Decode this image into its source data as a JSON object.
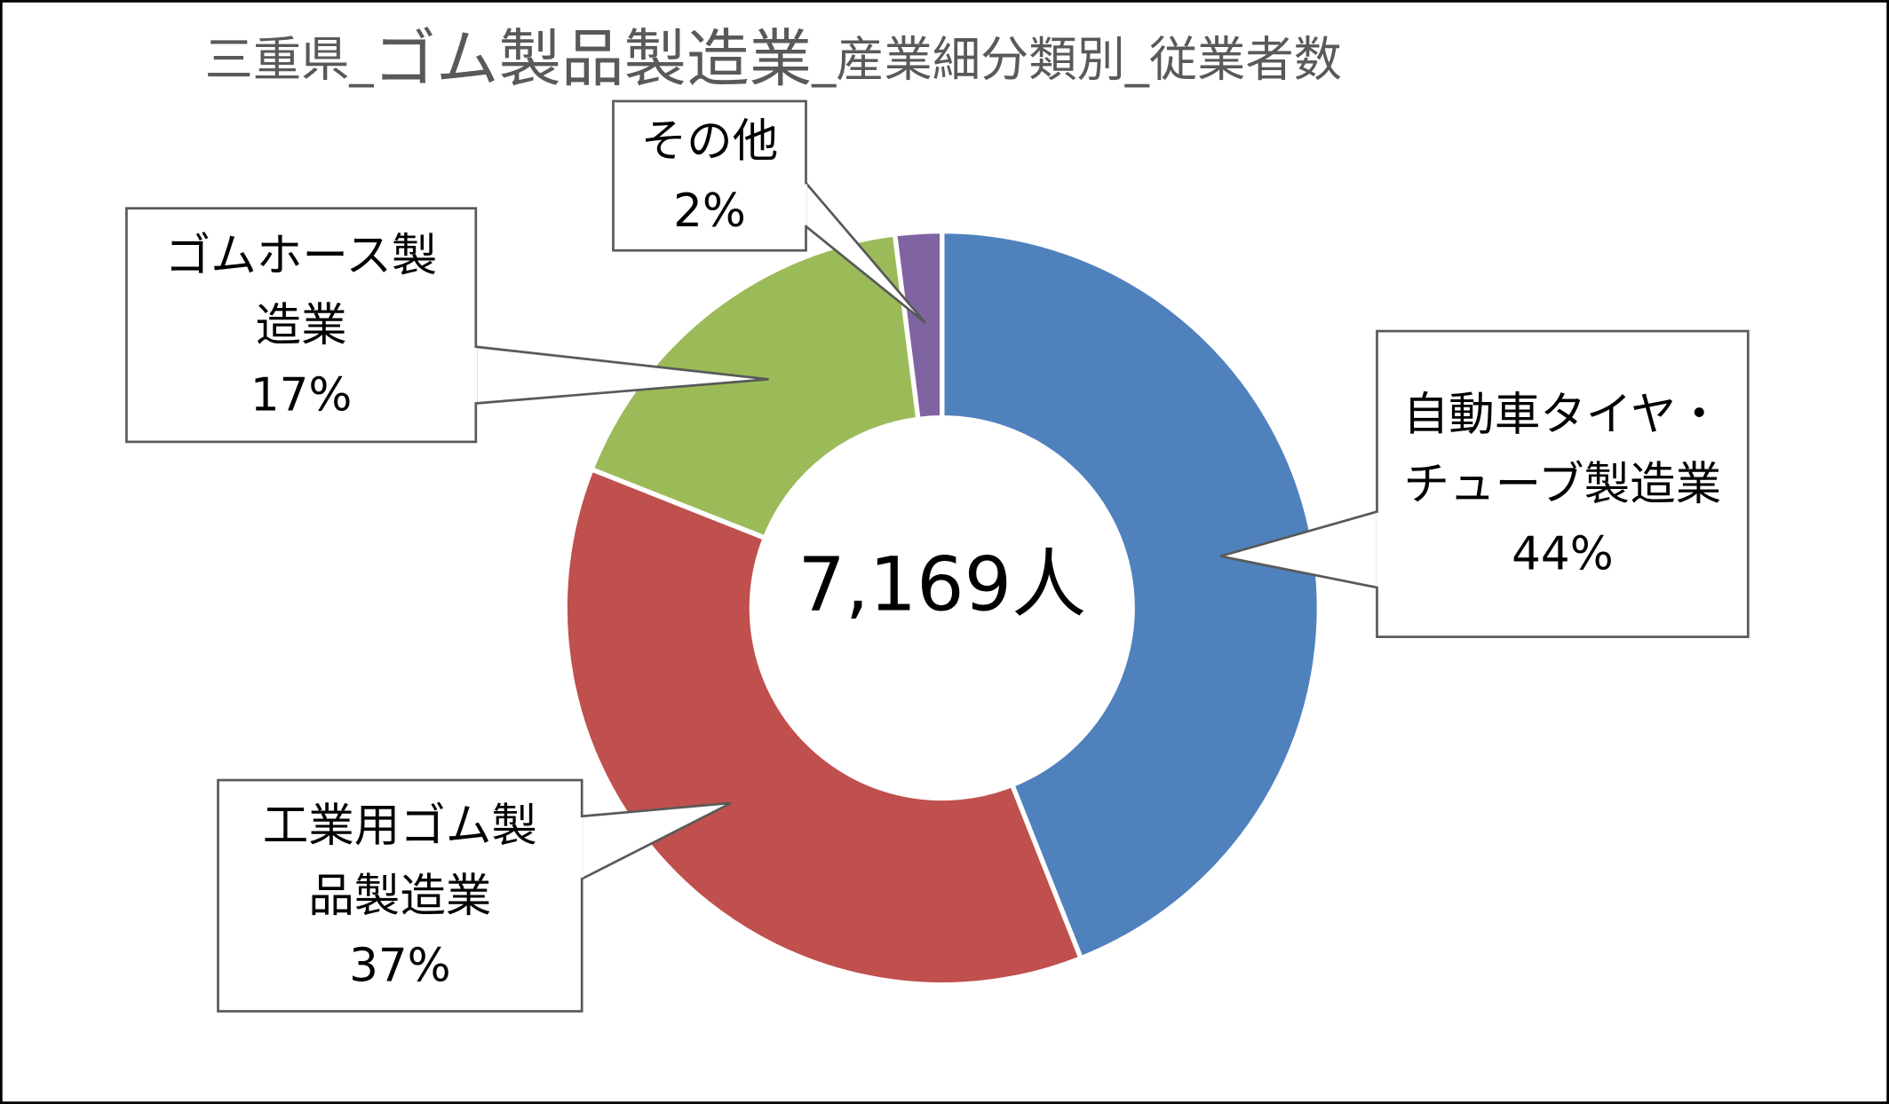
{
  "chart_data": {
    "type": "donut",
    "title": [
      "三重県_",
      "ゴム製品製造業",
      "_産業細分類別_従業者数"
    ],
    "center_label": "7,169人",
    "categories": [
      "自動車タイヤ・チューブ製造業",
      "工業用ゴム製品製造業",
      "ゴムホース製造業",
      "その他"
    ],
    "values": [
      44,
      37,
      17,
      2
    ],
    "value_labels": [
      "44%",
      "37%",
      "17%",
      "2%"
    ],
    "colors": [
      "#4f81bd",
      "#c0504d",
      "#9bbb59",
      "#8064a2"
    ]
  }
}
